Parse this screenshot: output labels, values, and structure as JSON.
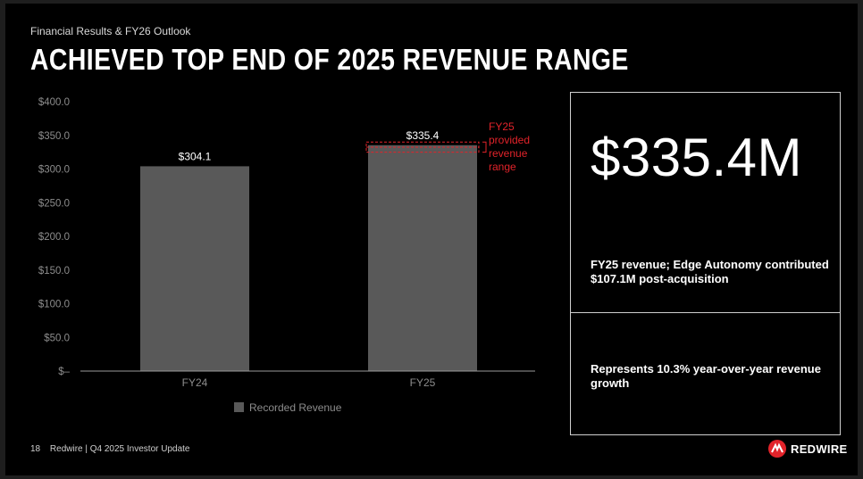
{
  "header": {
    "section_label": "Financial Results & FY26 Outlook",
    "title": "ACHIEVED TOP END OF 2025 REVENUE RANGE"
  },
  "chart_data": {
    "type": "bar",
    "categories": [
      "FY24",
      "FY25"
    ],
    "series": [
      {
        "name": "Recorded Revenue",
        "values": [
          304.1,
          335.4
        ],
        "data_labels": [
          "$304.1",
          "$335.4"
        ]
      }
    ],
    "y_ticks": [
      0,
      50,
      100,
      150,
      200,
      250,
      300,
      350,
      400
    ],
    "y_tick_labels": [
      "$–",
      "$50.0",
      "$100.0",
      "$150.0",
      "$200.0",
      "$250.0",
      "$300.0",
      "$350.0",
      "$400.0"
    ],
    "ylim": [
      0,
      400
    ],
    "annotation": {
      "category": "FY25",
      "range": [
        325,
        340
      ],
      "text_lines": [
        "FY25",
        "provided",
        "revenue",
        "range"
      ],
      "color": "#e2232a"
    },
    "legend_position": "bottom-center",
    "bar_color": "#595959",
    "grid": false
  },
  "panels": [
    {
      "value": "$335.4M",
      "text": "FY25 revenue; Edge Autonomy contributed $107.1M post-acquisition"
    },
    {
      "text": "Represents 10.3% year-over-year revenue growth"
    }
  ],
  "footer": {
    "page_number": "18",
    "text": "Redwire | Q4 2025 Investor Update"
  },
  "logo": {
    "wordmark": "REDWIRE",
    "icon": "redwire-logo-icon",
    "accent_color": "#e2232a"
  }
}
